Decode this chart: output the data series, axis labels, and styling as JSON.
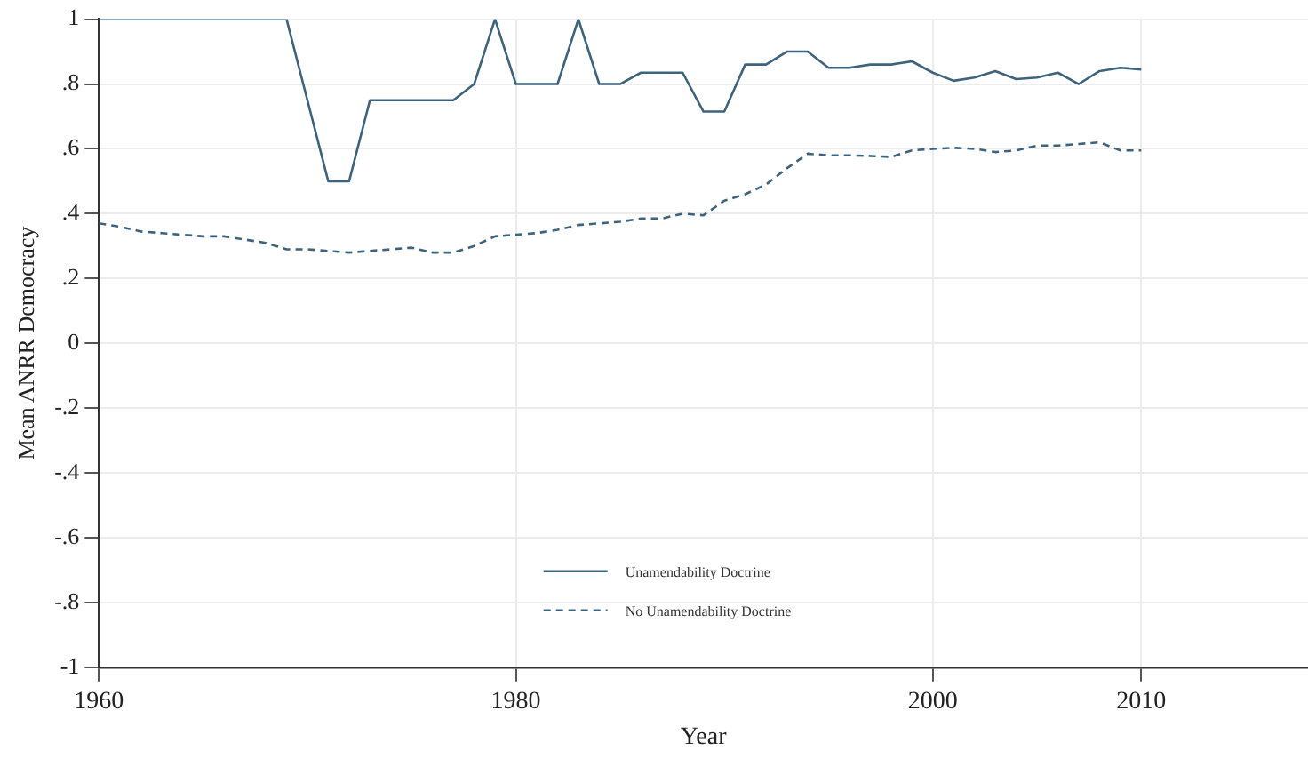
{
  "chart_data": {
    "type": "line",
    "xlabel": "Year",
    "ylabel": "Mean ANRR Democracy",
    "x": [
      1960,
      1961,
      1962,
      1963,
      1964,
      1965,
      1966,
      1967,
      1968,
      1969,
      1970,
      1971,
      1972,
      1973,
      1974,
      1975,
      1976,
      1977,
      1978,
      1979,
      1980,
      1981,
      1982,
      1983,
      1984,
      1985,
      1986,
      1987,
      1988,
      1989,
      1990,
      1991,
      1992,
      1993,
      1994,
      1995,
      1996,
      1997,
      1998,
      1999,
      2000,
      2001,
      2002,
      2003,
      2004,
      2005,
      2006,
      2007,
      2008,
      2009,
      2010
    ],
    "series": [
      {
        "name": "Unamendability Doctrine",
        "color": "#3e647d",
        "line_style": "solid",
        "values": [
          1,
          1,
          1,
          1,
          1,
          1,
          1,
          1,
          1,
          1,
          0.75,
          0.5,
          0.5,
          0.75,
          0.75,
          0.75,
          0.75,
          0.75,
          0.8,
          1,
          0.8,
          0.8,
          0.8,
          1,
          0.8,
          0.8,
          0.835,
          0.835,
          0.835,
          0.715,
          0.715,
          0.86,
          0.86,
          0.9,
          0.9,
          0.85,
          0.85,
          0.86,
          0.86,
          0.87,
          0.835,
          0.81,
          0.82,
          0.84,
          0.815,
          0.82,
          0.835,
          0.8,
          0.84,
          0.85,
          0.845
        ]
      },
      {
        "name": "No Unamendability Doctrine",
        "color": "#3e647d",
        "line_style": "dashed",
        "values": [
          0.37,
          0.36,
          0.345,
          0.34,
          0.335,
          0.33,
          0.33,
          0.32,
          0.31,
          0.29,
          0.29,
          0.285,
          0.28,
          0.285,
          0.29,
          0.295,
          0.28,
          0.28,
          0.3,
          0.33,
          0.335,
          0.34,
          0.35,
          0.365,
          0.37,
          0.375,
          0.385,
          0.385,
          0.4,
          0.395,
          0.44,
          0.46,
          0.49,
          0.54,
          0.585,
          0.58,
          0.58,
          0.578,
          0.575,
          0.595,
          0.6,
          0.603,
          0.6,
          0.59,
          0.595,
          0.61,
          0.61,
          0.615,
          0.62,
          0.595,
          0.595
        ]
      }
    ],
    "xlim": [
      1960,
      2018
    ],
    "xticks": [
      1960,
      1980,
      2000,
      2010
    ],
    "ylim": [
      -1,
      1
    ],
    "yticks": [
      {
        "value": -1,
        "label": "-1"
      },
      {
        "value": -0.8,
        "label": "-.8"
      },
      {
        "value": -0.6,
        "label": "-.6"
      },
      {
        "value": -0.4,
        "label": "-.4"
      },
      {
        "value": -0.2,
        "label": "-.2"
      },
      {
        "value": 0,
        "label": "0"
      },
      {
        "value": 0.2,
        "label": ".2"
      },
      {
        "value": 0.4,
        "label": ".4"
      },
      {
        "value": 0.6,
        "label": ".6"
      },
      {
        "value": 0.8,
        "label": ".8"
      },
      {
        "value": 1,
        "label": "1"
      }
    ],
    "grid": true,
    "legend": "bottom",
    "marker": "none"
  }
}
